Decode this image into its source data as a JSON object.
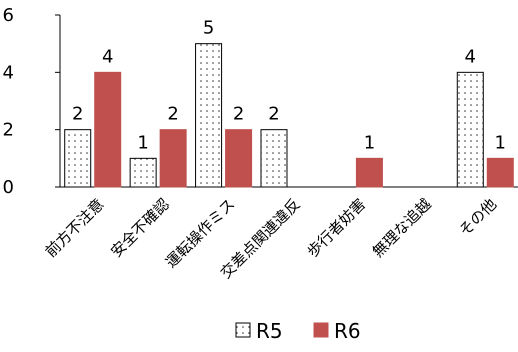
{
  "chart_data": {
    "type": "bar",
    "categories": [
      "前方不注意",
      "安全不確認",
      "運転操作ミス",
      "交差点関連違反",
      "歩行者妨害",
      "無理な追越",
      "その他"
    ],
    "series": [
      {
        "name": "R5",
        "values": [
          2,
          1,
          5,
          2,
          null,
          null,
          4
        ],
        "color": "#ffffff",
        "pattern": "dotted"
      },
      {
        "name": "R6",
        "values": [
          4,
          2,
          2,
          null,
          1,
          null,
          1
        ],
        "color": "#c0504d"
      }
    ],
    "yticks": [
      "0",
      "2",
      "4",
      "6"
    ],
    "ylim": [
      0,
      6
    ],
    "grid": false,
    "legend_position": "bottom-center"
  }
}
